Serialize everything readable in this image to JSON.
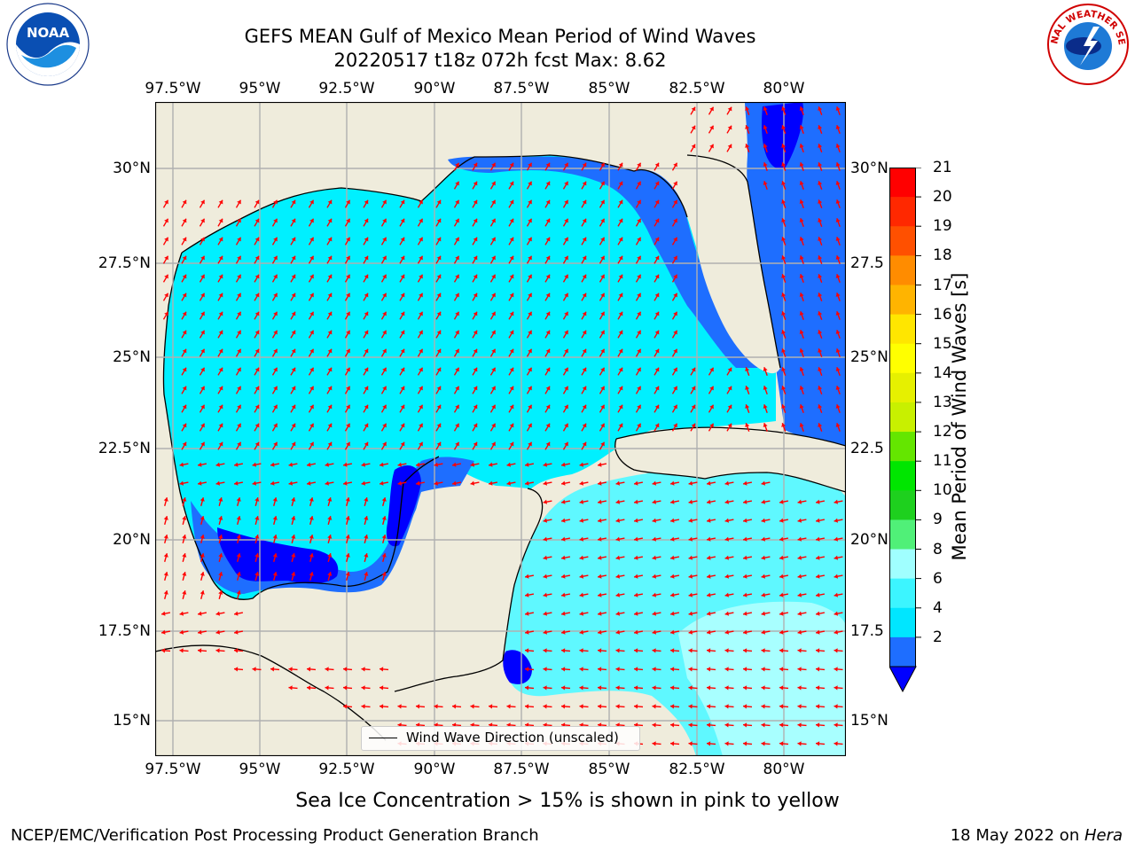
{
  "title_line1": "GEFS MEAN Gulf of Mexico Mean Period of Wind Waves",
  "title_line2": "20220517 t18z 072h fcst   Max: 8.62",
  "lon_labels": [
    "97.5°W",
    "95°W",
    "92.5°W",
    "90°W",
    "87.5°W",
    "85°W",
    "82.5°W",
    "80°W"
  ],
  "lat_labels_left": [
    "30°N",
    "27.5°N",
    "25°N",
    "22.5°N",
    "20°N",
    "17.5°N",
    "15°N"
  ],
  "lat_labels_right": [
    "30°N",
    "27.5",
    "25°N",
    "22.5",
    "20°N",
    "17.5",
    "15°N"
  ],
  "legend_label": "Wind Wave Direction (unscaled)",
  "colorbar": {
    "label": "Mean Period of Wind Waves [s]",
    "ticks": [
      "2",
      "4",
      "6",
      "8",
      "9",
      "10",
      "11",
      "12",
      "13",
      "14",
      "15",
      "16",
      "17",
      "18",
      "19",
      "20",
      "21"
    ],
    "colors": [
      "#1e6eff",
      "#00e6ff",
      "#3cf5ff",
      "#a0ffff",
      "#50f078",
      "#1ed01e",
      "#00e600",
      "#64e600",
      "#c8f000",
      "#e6f000",
      "#ffff00",
      "#ffe600",
      "#ffb400",
      "#ff8c00",
      "#ff5000",
      "#ff2800",
      "#ff0000"
    ],
    "under_color": "#0000ff"
  },
  "colors": {
    "land": "#efecdc",
    "grid": "#b0b0b0",
    "arrow": "#ff0000",
    "deep_blue": "#0000ff",
    "blue": "#1e6eff",
    "cyan": "#00f0ff",
    "light_cyan": "#5ff8ff",
    "pale_cyan": "#a8ffff"
  },
  "caption": "Sea Ice Concentration > 15% is shown in pink to yellow",
  "footer_left": "NCEP/EMC/Verification Post Processing Product Generation Branch",
  "footer_right_prefix": "18 May 2022 on ",
  "footer_right_italic": "Hera",
  "logos": {
    "left_text": "NOAA",
    "right_text": "NATIONAL WEATHER SERVICE"
  }
}
